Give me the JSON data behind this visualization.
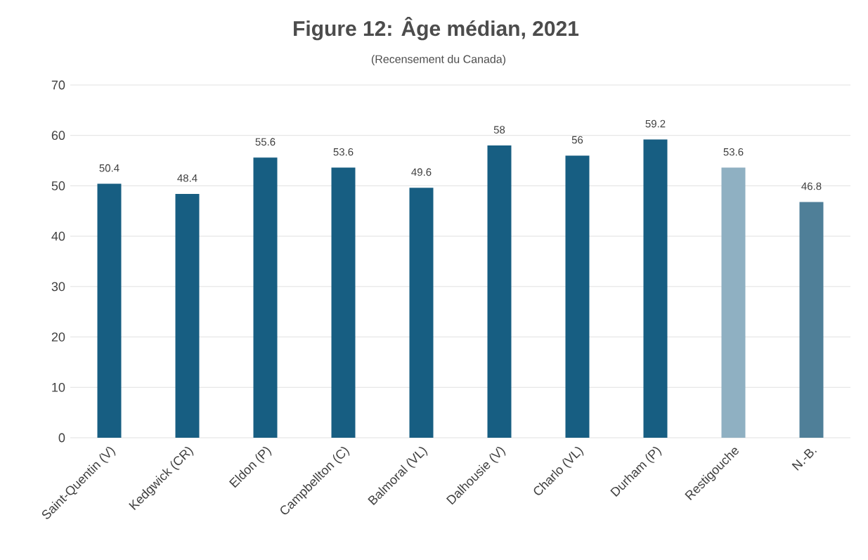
{
  "chart_data": {
    "type": "bar",
    "title": "Figure 12: Âge médian, 2021",
    "subtitle": "(Recensement du Canada)",
    "categories": [
      "Saint-Quentin (V)",
      "Kedgwick (CR)",
      "Eldon (P)",
      "Campbellton (C)",
      "Balmoral (VL)",
      "Dalhousie (V)",
      "Charlo (VL)",
      "Durham (P)",
      "Restigouche",
      "N.-B."
    ],
    "values": [
      50.4,
      48.4,
      55.6,
      53.6,
      49.6,
      58,
      56,
      59.2,
      53.6,
      46.8
    ],
    "colors": [
      "#175e82",
      "#175e82",
      "#175e82",
      "#175e82",
      "#175e82",
      "#175e82",
      "#175e82",
      "#175e82",
      "#8fb0c2",
      "#4f7f98"
    ],
    "ylim": [
      0,
      70
    ],
    "yticks": [
      0,
      10,
      20,
      30,
      40,
      50,
      60,
      70
    ],
    "grid": "y",
    "data_labels": true
  }
}
